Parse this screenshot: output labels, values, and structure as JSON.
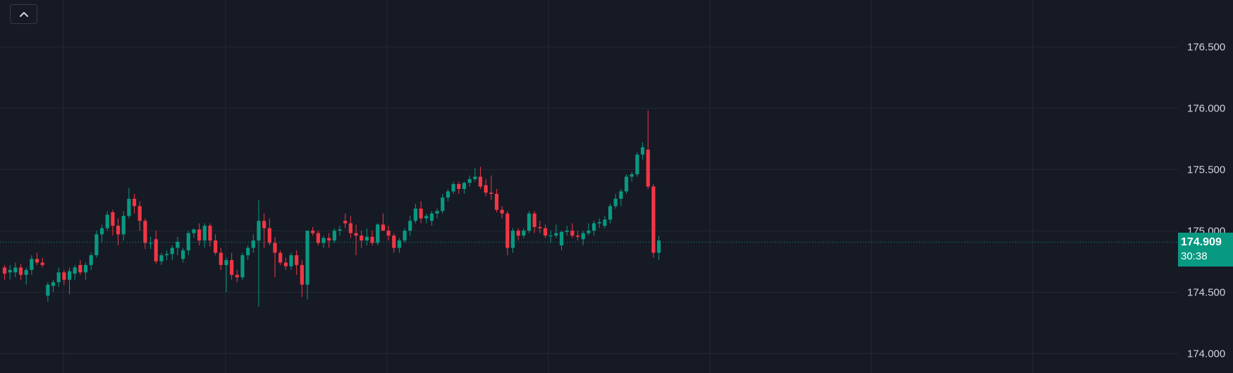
{
  "collapse_button": {
    "icon": "chevron-up-icon"
  },
  "current_price": {
    "value": 174.909,
    "label": "174.909",
    "countdown": "30:38"
  },
  "colors": {
    "background": "#161a25",
    "grid": "#242833",
    "up": "#089981",
    "down": "#f23645",
    "axis_text": "#d1d4dc"
  },
  "chart_data": {
    "type": "candlestick",
    "y_axis": {
      "ticks": [
        "176.500",
        "176.000",
        "175.500",
        "175.000",
        "174.500",
        "174.000"
      ],
      "min": 173.84,
      "max": 176.88,
      "position": "right"
    },
    "grid": true,
    "candles": [
      [
        174.7,
        174.72,
        174.6,
        174.65
      ],
      [
        174.66,
        174.72,
        174.6,
        174.68
      ],
      [
        174.66,
        174.74,
        174.62,
        174.7
      ],
      [
        174.7,
        174.73,
        174.6,
        174.64
      ],
      [
        174.64,
        174.7,
        174.56,
        174.68
      ],
      [
        174.68,
        174.8,
        174.64,
        174.77
      ],
      [
        174.77,
        174.82,
        174.72,
        174.74
      ],
      [
        174.74,
        174.78,
        174.7,
        174.72
      ],
      [
        174.47,
        174.58,
        174.42,
        174.56
      ],
      [
        174.55,
        174.6,
        174.5,
        174.58
      ],
      [
        174.58,
        174.7,
        174.54,
        174.66
      ],
      [
        174.66,
        174.68,
        174.56,
        174.6
      ],
      [
        174.6,
        174.7,
        174.48,
        174.67
      ],
      [
        174.65,
        174.72,
        174.6,
        174.7
      ],
      [
        174.72,
        174.76,
        174.64,
        174.66
      ],
      [
        174.66,
        174.74,
        174.6,
        174.72
      ],
      [
        174.72,
        174.82,
        174.68,
        174.8
      ],
      [
        174.8,
        175.0,
        174.78,
        174.97
      ],
      [
        174.97,
        175.05,
        174.9,
        175.02
      ],
      [
        175.02,
        175.16,
        175.0,
        175.13
      ],
      [
        175.15,
        175.17,
        174.96,
        175.04
      ],
      [
        175.04,
        175.1,
        174.88,
        174.97
      ],
      [
        174.97,
        175.16,
        174.92,
        175.12
      ],
      [
        175.12,
        175.35,
        175.1,
        175.26
      ],
      [
        175.26,
        175.3,
        175.14,
        175.2
      ],
      [
        175.2,
        175.24,
        175.0,
        175.08
      ],
      [
        175.08,
        175.1,
        174.85,
        174.9
      ],
      [
        174.9,
        174.95,
        174.85,
        174.9
      ],
      [
        174.93,
        175.0,
        174.73,
        174.75
      ],
      [
        174.75,
        174.82,
        174.72,
        174.8
      ],
      [
        174.8,
        174.84,
        174.76,
        174.81
      ],
      [
        174.81,
        174.88,
        174.76,
        174.86
      ],
      [
        174.86,
        174.95,
        174.8,
        174.91
      ],
      [
        174.77,
        174.86,
        174.74,
        174.84
      ],
      [
        174.84,
        175.0,
        174.8,
        174.98
      ],
      [
        174.98,
        175.02,
        174.94,
        175.01
      ],
      [
        175.01,
        175.06,
        174.88,
        174.92
      ],
      [
        174.92,
        175.06,
        174.86,
        175.04
      ],
      [
        175.04,
        175.06,
        174.87,
        174.92
      ],
      [
        174.92,
        174.97,
        174.8,
        174.82
      ],
      [
        174.82,
        174.86,
        174.68,
        174.72
      ],
      [
        174.72,
        174.78,
        174.5,
        174.76
      ],
      [
        174.76,
        174.82,
        174.6,
        174.64
      ],
      [
        174.64,
        174.68,
        174.58,
        174.62
      ],
      [
        174.62,
        174.82,
        174.6,
        174.8
      ],
      [
        174.8,
        174.88,
        174.76,
        174.86
      ],
      [
        174.86,
        174.97,
        174.82,
        174.92
      ],
      [
        174.92,
        175.25,
        174.38,
        175.08
      ],
      [
        175.08,
        175.14,
        174.86,
        175.02
      ],
      [
        175.02,
        175.1,
        174.88,
        174.9
      ],
      [
        174.9,
        174.95,
        174.62,
        174.82
      ],
      [
        174.82,
        174.84,
        174.72,
        174.74
      ],
      [
        174.74,
        174.78,
        174.68,
        174.71
      ],
      [
        174.71,
        174.82,
        174.68,
        174.8
      ],
      [
        174.8,
        174.84,
        174.64,
        174.72
      ],
      [
        174.72,
        174.76,
        174.46,
        174.56
      ],
      [
        174.56,
        175.0,
        174.44,
        175.0
      ],
      [
        175.0,
        175.03,
        174.96,
        174.98
      ],
      [
        174.98,
        175.0,
        174.88,
        174.9
      ],
      [
        174.9,
        174.96,
        174.86,
        174.94
      ],
      [
        174.94,
        174.98,
        174.86,
        174.92
      ],
      [
        174.92,
        175.02,
        174.9,
        175.0
      ],
      [
        175.0,
        175.04,
        174.96,
        175.01
      ],
      [
        175.08,
        175.14,
        175.02,
        175.06
      ],
      [
        175.06,
        175.12,
        174.94,
        174.98
      ],
      [
        174.98,
        175.05,
        174.8,
        174.96
      ],
      [
        174.96,
        175.0,
        174.86,
        174.92
      ],
      [
        174.92,
        175.02,
        174.88,
        174.95
      ],
      [
        174.95,
        175.0,
        174.88,
        174.9
      ],
      [
        174.9,
        175.06,
        174.88,
        175.05
      ],
      [
        175.05,
        175.14,
        175.0,
        175.0
      ],
      [
        175.0,
        175.04,
        174.92,
        174.96
      ],
      [
        174.96,
        174.98,
        174.82,
        174.86
      ],
      [
        174.86,
        174.94,
        174.82,
        174.92
      ],
      [
        174.92,
        175.02,
        174.9,
        175.0
      ],
      [
        175.0,
        175.12,
        174.96,
        175.08
      ],
      [
        175.08,
        175.22,
        175.06,
        175.18
      ],
      [
        175.18,
        175.24,
        175.06,
        175.1
      ],
      [
        175.1,
        175.14,
        175.06,
        175.12
      ],
      [
        175.08,
        175.16,
        175.04,
        175.14
      ],
      [
        175.14,
        175.18,
        175.1,
        175.16
      ],
      [
        175.16,
        175.3,
        175.14,
        175.27
      ],
      [
        175.27,
        175.34,
        175.24,
        175.32
      ],
      [
        175.32,
        175.4,
        175.3,
        175.38
      ],
      [
        175.38,
        175.4,
        175.3,
        175.34
      ],
      [
        175.34,
        175.4,
        175.3,
        175.39
      ],
      [
        175.39,
        175.45,
        175.36,
        175.42
      ],
      [
        175.42,
        175.51,
        175.4,
        175.44
      ],
      [
        175.44,
        175.52,
        175.34,
        175.36
      ],
      [
        175.37,
        175.42,
        175.28,
        175.31
      ],
      [
        175.31,
        175.45,
        175.25,
        175.3
      ],
      [
        175.3,
        175.34,
        175.15,
        175.17
      ],
      [
        175.17,
        175.2,
        175.1,
        175.14
      ],
      [
        175.14,
        175.16,
        174.8,
        174.86
      ],
      [
        174.86,
        175.02,
        174.82,
        175.0
      ],
      [
        175.0,
        175.02,
        174.92,
        174.96
      ],
      [
        174.96,
        175.02,
        174.94,
        175.0
      ],
      [
        175.0,
        175.16,
        174.98,
        175.14
      ],
      [
        175.14,
        175.16,
        174.98,
        175.03
      ],
      [
        175.03,
        175.08,
        174.98,
        175.02
      ],
      [
        175.02,
        175.05,
        174.94,
        174.96
      ],
      [
        174.96,
        175.0,
        174.9,
        174.96
      ],
      [
        174.96,
        175.05,
        174.94,
        174.98
      ],
      [
        174.88,
        175.0,
        174.84,
        174.99
      ],
      [
        174.99,
        175.04,
        174.96,
        175.0
      ],
      [
        175.0,
        175.06,
        174.94,
        174.96
      ],
      [
        174.96,
        175.0,
        174.92,
        174.95
      ],
      [
        174.93,
        175.0,
        174.88,
        174.98
      ],
      [
        174.98,
        175.06,
        174.96,
        175.0
      ],
      [
        175.0,
        175.08,
        174.96,
        175.06
      ],
      [
        175.06,
        175.1,
        175.02,
        175.07
      ],
      [
        175.04,
        175.12,
        175.02,
        175.09
      ],
      [
        175.09,
        175.22,
        175.06,
        175.2
      ],
      [
        175.2,
        175.3,
        175.18,
        175.26
      ],
      [
        175.26,
        175.34,
        175.2,
        175.32
      ],
      [
        175.32,
        175.46,
        175.3,
        175.44
      ],
      [
        175.44,
        175.48,
        175.4,
        175.46
      ],
      [
        175.46,
        175.64,
        175.44,
        175.62
      ],
      [
        175.62,
        175.72,
        175.58,
        175.68
      ],
      [
        175.66,
        175.98,
        175.34,
        175.36
      ],
      [
        175.36,
        175.38,
        174.78,
        174.82
      ],
      [
        174.82,
        174.96,
        174.76,
        174.92
      ]
    ]
  }
}
